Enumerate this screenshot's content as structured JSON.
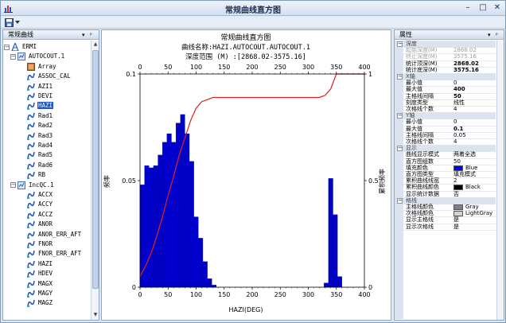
{
  "window": {
    "title": "常规曲线直方图",
    "controls": {
      "minimize": "–",
      "maximize": "□",
      "close": "✕"
    }
  },
  "toolbar": {
    "save_icon": "save-icon",
    "dropdown_icon": "chevron-down-icon"
  },
  "left_panel": {
    "title": "常规曲线",
    "tree": [
      {
        "label": "ERMI",
        "icon": "well-icon",
        "level": 0,
        "expanded": true
      },
      {
        "label": "AUTOCOUT.1",
        "icon": "dataset-icon",
        "level": 1,
        "expanded": true
      },
      {
        "label": "Array",
        "icon": "array-icon",
        "level": 2
      },
      {
        "label": "ASSOC_CAL",
        "icon": "curve-icon",
        "level": 2
      },
      {
        "label": "AZI1",
        "icon": "curve-icon",
        "level": 2
      },
      {
        "label": "DEVI",
        "icon": "curve-icon",
        "level": 2
      },
      {
        "label": "HAZI",
        "icon": "curve-icon",
        "level": 2,
        "selected": true
      },
      {
        "label": "Rad1",
        "icon": "curve-icon",
        "level": 2
      },
      {
        "label": "Rad2",
        "icon": "curve-icon",
        "level": 2
      },
      {
        "label": "Rad3",
        "icon": "curve-icon",
        "level": 2
      },
      {
        "label": "Rad4",
        "icon": "curve-icon",
        "level": 2
      },
      {
        "label": "Rad5",
        "icon": "curve-icon",
        "level": 2
      },
      {
        "label": "Rad6",
        "icon": "curve-icon",
        "level": 2
      },
      {
        "label": "RB",
        "icon": "curve-icon",
        "level": 2
      },
      {
        "label": "IncQC.1",
        "icon": "dataset-icon",
        "level": 1,
        "expanded": true
      },
      {
        "label": "ACCX",
        "icon": "curve-icon",
        "level": 2
      },
      {
        "label": "ACCY",
        "icon": "curve-icon",
        "level": 2
      },
      {
        "label": "ACCZ",
        "icon": "curve-icon",
        "level": 2
      },
      {
        "label": "ANOR",
        "icon": "curve-icon",
        "level": 2
      },
      {
        "label": "ANOR_ERR_AFT",
        "icon": "curve-icon",
        "level": 2
      },
      {
        "label": "FNOR",
        "icon": "curve-icon",
        "level": 2
      },
      {
        "label": "FNOR_ERR_AFT",
        "icon": "curve-icon",
        "level": 2
      },
      {
        "label": "HAZI",
        "icon": "curve-icon",
        "level": 2
      },
      {
        "label": "HDEV",
        "icon": "curve-icon",
        "level": 2
      },
      {
        "label": "MAGX",
        "icon": "curve-icon",
        "level": 2
      },
      {
        "label": "MAGY",
        "icon": "curve-icon",
        "level": 2
      },
      {
        "label": "MAGZ",
        "icon": "curve-icon",
        "level": 2
      }
    ]
  },
  "chart_data": {
    "type": "bar",
    "title": "常规曲线直方图",
    "subtitle_curve": "曲线名称:HAZI.AUTOCOUT.AUTOCOUT.1",
    "subtitle_depth": "深度范围 (M) :[2868.02-3575.16]",
    "xlabel": "HAZI(DEG)",
    "ylabel_left": "频率",
    "ylabel_right": "累积频率",
    "xlim": [
      0,
      400
    ],
    "x_ticks": [
      0,
      50,
      100,
      150,
      200,
      250,
      300,
      350,
      400
    ],
    "ylim": [
      0,
      0.1
    ],
    "y_ticks_left": [
      "0",
      "0.05",
      "0.1"
    ],
    "y2lim": [
      0,
      1
    ],
    "y_ticks_right": [
      "0",
      "0.5",
      "1"
    ],
    "bin_width": 8,
    "bins_left_edges": [
      0,
      8,
      16,
      24,
      32,
      40,
      48,
      56,
      64,
      72,
      80,
      88,
      96,
      104,
      112,
      120,
      128,
      328,
      336,
      344,
      352
    ],
    "values": [
      0.048,
      0.057,
      0.056,
      0.057,
      0.062,
      0.068,
      0.072,
      0.068,
      0.077,
      0.081,
      0.072,
      0.059,
      0.033,
      0.023,
      0.012,
      0.004,
      0.001,
      0.002,
      0.051,
      0.034,
      0.005
    ],
    "cumulative": {
      "x": [
        0,
        10,
        20,
        30,
        40,
        50,
        60,
        70,
        80,
        90,
        100,
        110,
        120,
        130,
        140,
        320,
        330,
        340,
        350,
        360,
        400
      ],
      "y": [
        0.05,
        0.1,
        0.16,
        0.24,
        0.33,
        0.43,
        0.52,
        0.62,
        0.7,
        0.78,
        0.84,
        0.87,
        0.88,
        0.89,
        0.89,
        0.89,
        0.9,
        0.93,
        1.0,
        1.0,
        1.0
      ]
    },
    "bar_color": "#0000cc",
    "curve_color": "#e02020",
    "grid": false
  },
  "right_panel": {
    "title": "属性",
    "categories": [
      {
        "name": "深度",
        "rows": [
          {
            "k": "起始深度(M)",
            "v": "2868.02",
            "disabled": true
          },
          {
            "k": "终止深度(M)",
            "v": "3575.16",
            "disabled": true
          },
          {
            "k": "统计顶深(M)",
            "v": "2868.02",
            "bold": true
          },
          {
            "k": "统计底深(M)",
            "v": "3575.16",
            "bold": true
          }
        ]
      },
      {
        "name": "X轴",
        "rows": [
          {
            "k": "最小值",
            "v": "0"
          },
          {
            "k": "最大值",
            "v": "400",
            "bold": true
          },
          {
            "k": "主格线间隔",
            "v": "50",
            "bold": true
          },
          {
            "k": "刻度类型",
            "v": "线性"
          },
          {
            "k": "次格线个数",
            "v": "4"
          }
        ]
      },
      {
        "name": "Y轴",
        "rows": [
          {
            "k": "最小值",
            "v": "0"
          },
          {
            "k": "最大值",
            "v": "0.1",
            "bold": true
          },
          {
            "k": "主格线间隔",
            "v": "0.05"
          },
          {
            "k": "次格线个数",
            "v": "4"
          }
        ]
      },
      {
        "name": "显示",
        "rows": [
          {
            "k": "曲线显示模式",
            "v": "两着全选"
          },
          {
            "k": "直方图组数",
            "v": "50"
          },
          {
            "k": "填充颜色",
            "v": "Blue",
            "swatch": "#0000ff"
          },
          {
            "k": "直方图类型",
            "v": "填充模式"
          },
          {
            "k": "累积曲线线宽",
            "v": "2"
          },
          {
            "k": "累积曲线颜色",
            "v": "Black",
            "swatch": "#000000"
          },
          {
            "k": "显示统计数据",
            "v": "否"
          }
        ]
      },
      {
        "name": "格线",
        "rows": [
          {
            "k": "主格线颜色",
            "v": "Gray",
            "swatch": "#808080"
          },
          {
            "k": "次格线颜色",
            "v": "LightGray",
            "swatch": "#d3d3d3"
          },
          {
            "k": "显示主格线",
            "v": "是"
          },
          {
            "k": "显示次格线",
            "v": "是"
          }
        ]
      }
    ]
  }
}
